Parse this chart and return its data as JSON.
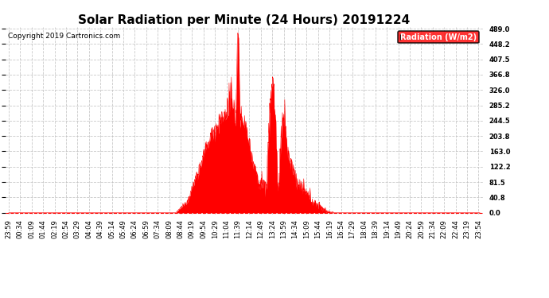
{
  "title": "Solar Radiation per Minute (24 Hours) 20191224",
  "copyright": "Copyright 2019 Cartronics.com",
  "legend_label": "Radiation (W/m2)",
  "ylim_min": -5,
  "ylim_max": 494,
  "yticks": [
    0.0,
    40.8,
    81.5,
    122.2,
    163.0,
    203.8,
    244.5,
    285.2,
    326.0,
    366.8,
    407.5,
    448.2,
    489.0
  ],
  "fill_color": "#FF0000",
  "line_color": "#FF0000",
  "bg_color": "#FFFFFF",
  "grid_color": "#BBBBBB",
  "dashed_line_color": "#FF0000",
  "title_fontsize": 11,
  "copyright_fontsize": 6.5,
  "tick_fontsize": 6,
  "legend_fontsize": 7,
  "total_minutes": 1440,
  "rise_minute": 510,
  "set_minute": 990
}
